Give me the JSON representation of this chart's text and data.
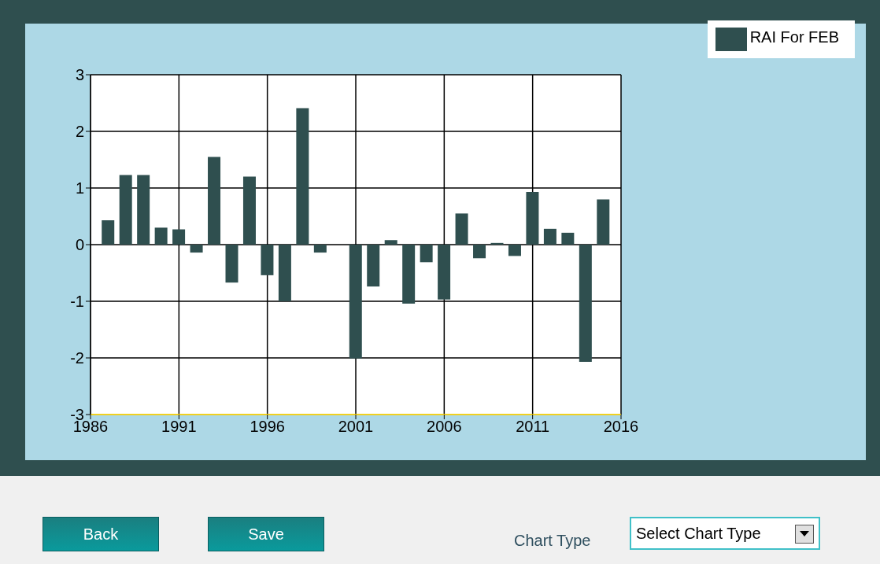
{
  "chart_data": {
    "type": "bar",
    "x": [
      1987,
      1988,
      1989,
      1990,
      1991,
      1992,
      1993,
      1994,
      1995,
      1996,
      1997,
      1998,
      1999,
      2000,
      2001,
      2002,
      2003,
      2004,
      2005,
      2006,
      2007,
      2008,
      2009,
      2010,
      2011,
      2012,
      2013,
      2014,
      2015
    ],
    "series": [
      {
        "name": "RAI For FEB",
        "color": "#2f4f4f",
        "values": [
          0.43,
          1.23,
          1.23,
          0.3,
          0.27,
          -0.14,
          1.55,
          -0.67,
          1.2,
          -0.54,
          -1.0,
          2.41,
          -0.14,
          0,
          -2.01,
          -0.74,
          0.08,
          -1.04,
          -0.31,
          -0.97,
          0.55,
          -0.24,
          0.03,
          -0.2,
          0.93,
          0.28,
          0.21,
          -2.07,
          0.8
        ]
      }
    ],
    "xlim": [
      1986,
      2016
    ],
    "xticks": [
      1986,
      1991,
      1996,
      2001,
      2006,
      2011,
      2016
    ],
    "ylim": [
      -3,
      3
    ],
    "yticks": [
      -3,
      -2,
      -1,
      0,
      1,
      2,
      3
    ],
    "grid": true,
    "legend": "top right",
    "annotations": [
      "Back",
      "Save",
      "Chart Type",
      "Select Chart Type"
    ]
  }
}
